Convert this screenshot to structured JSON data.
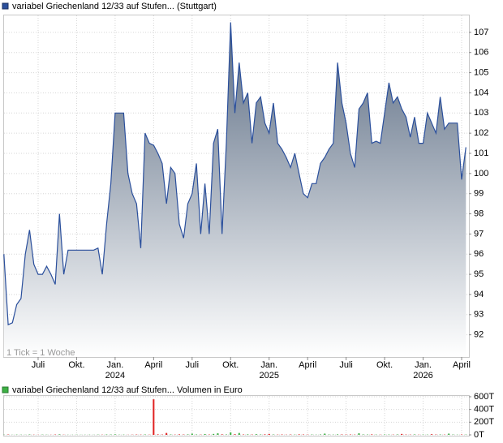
{
  "chart_data": [
    {
      "type": "area",
      "note": "1 Tick = 1 Woche",
      "categories": [
        null,
        null,
        null,
        null,
        null,
        null,
        null,
        null,
        "Juli",
        null,
        null,
        null,
        null,
        null,
        null,
        null,
        null,
        "Okt.",
        null,
        null,
        null,
        null,
        null,
        null,
        null,
        null,
        "Jan.",
        null,
        null,
        null,
        null,
        null,
        null,
        null,
        null,
        "April",
        null,
        null,
        null,
        null,
        null,
        null,
        null,
        null,
        "Juli",
        null,
        null,
        null,
        null,
        null,
        null,
        null,
        null,
        "Okt.",
        null,
        null,
        null,
        null,
        null,
        null,
        null,
        null,
        "Jan.",
        null,
        null,
        null,
        null,
        null,
        null,
        null,
        null,
        "April",
        null,
        null,
        null,
        null,
        null,
        null,
        null,
        null,
        "Juli",
        null,
        null,
        null,
        null,
        null,
        null,
        null,
        null,
        "Okt.",
        null,
        null,
        null,
        null,
        null,
        null,
        null,
        null,
        "Jan.",
        null,
        null,
        null,
        null,
        null,
        null,
        null,
        null,
        "April",
        null
      ],
      "x_years": [
        null,
        null,
        null,
        null,
        null,
        null,
        null,
        null,
        null,
        null,
        null,
        null,
        null,
        null,
        null,
        null,
        null,
        null,
        null,
        null,
        null,
        null,
        null,
        null,
        null,
        null,
        "2024",
        null,
        null,
        null,
        null,
        null,
        null,
        null,
        null,
        null,
        null,
        null,
        null,
        null,
        null,
        null,
        null,
        null,
        null,
        null,
        null,
        null,
        null,
        null,
        null,
        null,
        null,
        null,
        null,
        null,
        null,
        null,
        null,
        null,
        null,
        null,
        "2025",
        null,
        null,
        null,
        null,
        null,
        null,
        null,
        null,
        null,
        null,
        null,
        null,
        null,
        null,
        null,
        null,
        null,
        null,
        null,
        null,
        null,
        null,
        null,
        null,
        null,
        null,
        null,
        null,
        null,
        null,
        null,
        null,
        null,
        null,
        null,
        "2026",
        null,
        null,
        null,
        null,
        null,
        null,
        null,
        null,
        null,
        null
      ],
      "series": [
        {
          "name": "variabel Griechenland 12/33 auf Stufen... (Stuttgart)",
          "color": "#2a4f9c",
          "values": [
            96.0,
            92.5,
            92.6,
            93.5,
            93.8,
            96.0,
            97.2,
            95.5,
            95.0,
            95.0,
            95.4,
            95.0,
            94.5,
            98.0,
            95.0,
            96.2,
            96.2,
            96.2,
            96.2,
            96.2,
            96.2,
            96.2,
            96.3,
            95.0,
            97.5,
            99.5,
            103.0,
            103.0,
            103.0,
            100.0,
            99.0,
            98.5,
            96.3,
            102.0,
            101.5,
            101.4,
            101.0,
            100.5,
            98.5,
            100.3,
            100.0,
            97.5,
            96.8,
            98.5,
            99.0,
            100.5,
            97.0,
            99.5,
            97.0,
            101.5,
            102.2,
            97.0,
            101.5,
            107.5,
            103.0,
            105.5,
            103.5,
            104.0,
            101.5,
            103.5,
            103.8,
            102.5,
            102.0,
            103.5,
            101.5,
            101.2,
            100.8,
            100.3,
            101.0,
            100.0,
            99.0,
            98.8,
            99.5,
            99.5,
            100.5,
            100.8,
            101.2,
            101.5,
            105.5,
            103.5,
            102.5,
            101.0,
            100.3,
            103.2,
            103.5,
            104.0,
            101.5,
            101.6,
            101.5,
            103.0,
            104.5,
            103.5,
            103.8,
            103.2,
            102.8,
            101.8,
            102.8,
            101.5,
            101.5,
            103.0,
            102.5,
            102.0,
            103.8,
            102.2,
            102.5,
            102.5,
            102.5,
            99.7,
            101.3
          ]
        }
      ],
      "ylim": [
        90.9,
        107.8
      ],
      "yticks": [
        92,
        93,
        94,
        95,
        96,
        97,
        98,
        99,
        100,
        101,
        102,
        103,
        104,
        105,
        106,
        107
      ],
      "grid": true
    },
    {
      "type": "bar",
      "series": [
        {
          "name": "variabel Griechenland 12/33 auf Stufen... Volumen in Euro",
          "color": "#3cb043",
          "values": [
            3000,
            5000,
            2000,
            4000,
            3000,
            2000,
            6000,
            3000,
            2000,
            4000,
            3000,
            2000,
            5000,
            8000,
            3000,
            2000,
            2000,
            3000,
            2000,
            2000,
            3000,
            2000,
            4000,
            3000,
            6000,
            5000,
            8000,
            3000,
            4000,
            2000,
            3000,
            5000,
            4000,
            6000,
            3000,
            560000,
            8000,
            5000,
            30000,
            6000,
            4000,
            8000,
            5000,
            7000,
            20000,
            6000,
            4000,
            12000,
            5000,
            15000,
            25000,
            8000,
            6000,
            40000,
            10000,
            30000,
            6000,
            8000,
            5000,
            10000,
            6000,
            8000,
            15000,
            5000,
            4000,
            6000,
            3000,
            5000,
            4000,
            8000,
            6000,
            4000,
            5000,
            3000,
            6000,
            20000,
            5000,
            4000,
            8000,
            6000,
            5000,
            6000,
            4000,
            25000,
            6000,
            5000,
            8000,
            4000,
            3000,
            6000,
            5000,
            4000,
            6000,
            15000,
            5000,
            4000,
            6000,
            3000,
            5000,
            4000,
            10000,
            5000,
            6000,
            4000,
            20000,
            5000,
            3000,
            6000,
            4000
          ]
        }
      ],
      "down_color": "#e02020",
      "ylim": [
        0,
        600000
      ],
      "yticks": [
        {
          "value": 0,
          "label": "0T"
        },
        {
          "value": 200000,
          "label": "200T"
        },
        {
          "value": 400000,
          "label": "400T"
        },
        {
          "value": 600000,
          "label": "600T"
        }
      ],
      "grid": true
    }
  ]
}
